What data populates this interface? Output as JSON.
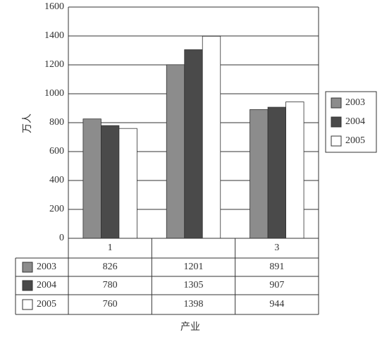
{
  "chart_data": {
    "type": "bar",
    "y_label": "万人",
    "x_label": "产业",
    "categories": [
      "1",
      null,
      "3"
    ],
    "series": [
      {
        "name": "2003",
        "color": "#8c8c8c",
        "values": [
          826,
          1201,
          891
        ]
      },
      {
        "name": "2004",
        "color": "#4a4a4a",
        "values": [
          780,
          1305,
          907
        ]
      },
      {
        "name": "2005",
        "color": "#ffffff",
        "values": [
          760,
          1398,
          944
        ]
      }
    ],
    "ylim": [
      0,
      1600
    ],
    "yticks": [
      0,
      200,
      400,
      600,
      800,
      1000,
      1200,
      1400,
      1600
    ],
    "grid": true,
    "legend": "right"
  }
}
